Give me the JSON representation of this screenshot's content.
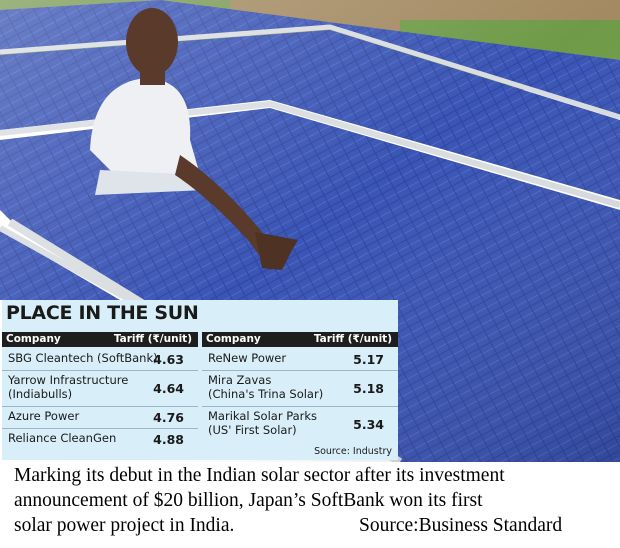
{
  "infographic": {
    "title": "PLACE IN THE SUN",
    "header": {
      "company": "Company",
      "tariff": "Tariff (₹/unit)"
    },
    "left_rows": [
      {
        "company": "SBG Cleantech (SoftBank)",
        "tariff": "4.63"
      },
      {
        "company_line1": "Yarrow Infrastructure",
        "company_line2": "(Indiabulls)",
        "tariff": "4.64"
      },
      {
        "company": "Azure Power",
        "tariff": "4.76"
      },
      {
        "company": "Reliance CleanGen",
        "tariff": "4.88"
      }
    ],
    "right_rows": [
      {
        "company": "ReNew Power",
        "tariff": "5.17"
      },
      {
        "company_line1": "Mira Zavas",
        "company_line2": "(China's Trina Solar)",
        "tariff": "5.18"
      },
      {
        "company_line1": "Marikal Solar Parks",
        "company_line2": "(US' First Solar)",
        "tariff": "5.34"
      }
    ],
    "source": "Source: Industry"
  },
  "caption": {
    "line1": "Marking its debut in the Indian solar sector after its investment",
    "line2": "announcement of $20 billion, Japan’s SoftBank won its first",
    "line3": "solar power project in India.",
    "source": "Source:Business Standard"
  },
  "colors": {
    "panel_bg": "#d8eef8",
    "header_bg": "#1e1e1e",
    "solar_blue": "#2c3f9a",
    "frame": "#d9dde0"
  }
}
